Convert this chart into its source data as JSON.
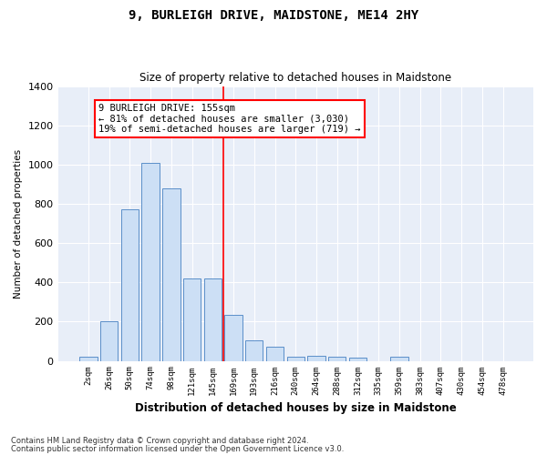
{
  "title": "9, BURLEIGH DRIVE, MAIDSTONE, ME14 2HY",
  "subtitle": "Size of property relative to detached houses in Maidstone",
  "xlabel": "Distribution of detached houses by size in Maidstone",
  "ylabel": "Number of detached properties",
  "bar_color": "#ccdff5",
  "bar_edge_color": "#5b8fc9",
  "background_color": "#e8eef8",
  "grid_color": "#ffffff",
  "categories": [
    "2sqm",
    "26sqm",
    "50sqm",
    "74sqm",
    "98sqm",
    "121sqm",
    "145sqm",
    "169sqm",
    "193sqm",
    "216sqm",
    "240sqm",
    "264sqm",
    "288sqm",
    "312sqm",
    "335sqm",
    "359sqm",
    "383sqm",
    "407sqm",
    "430sqm",
    "454sqm",
    "478sqm"
  ],
  "values": [
    20,
    200,
    770,
    1010,
    880,
    420,
    420,
    235,
    105,
    70,
    20,
    25,
    20,
    15,
    0,
    20,
    0,
    0,
    0,
    0,
    0
  ],
  "ylim": [
    0,
    1400
  ],
  "yticks": [
    0,
    200,
    400,
    600,
    800,
    1000,
    1200,
    1400
  ],
  "red_line_x": 6.5,
  "annotation_text": "9 BURLEIGH DRIVE: 155sqm\n← 81% of detached houses are smaller (3,030)\n19% of semi-detached houses are larger (719) →",
  "footnote1": "Contains HM Land Registry data © Crown copyright and database right 2024.",
  "footnote2": "Contains public sector information licensed under the Open Government Licence v3.0."
}
